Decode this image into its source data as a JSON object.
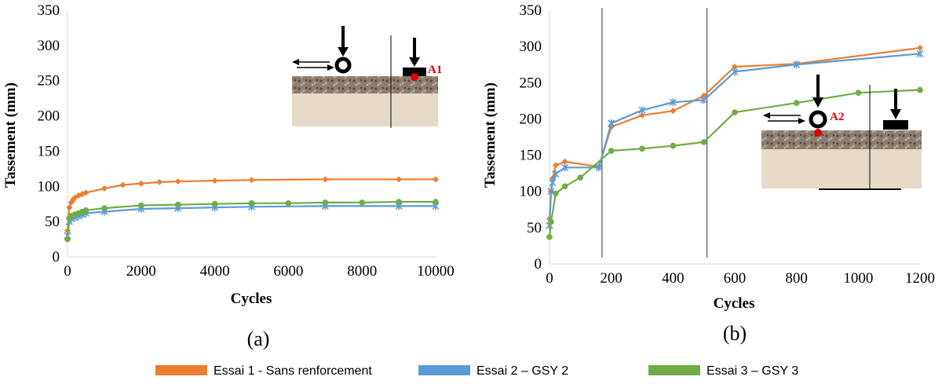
{
  "colors": {
    "essai1": "#ed7d31",
    "essai2": "#5b9bd5",
    "essai3": "#70ad47",
    "axis": "#d9d9d9",
    "sensor": "#e00000"
  },
  "legend": [
    {
      "label": "Essai 1 - Sans renforcement",
      "color": "#ed7d31"
    },
    {
      "label": "Essai 2 – GSY 2",
      "color": "#5b9bd5"
    },
    {
      "label": "Essai 3 – GSY 3",
      "color": "#70ad47"
    }
  ],
  "chart_data": [
    {
      "type": "line",
      "panel_label": "(a)",
      "xlabel": "Cycles",
      "ylabel": "Tassement (mm)",
      "xlim": [
        0,
        10000
      ],
      "ylim": [
        0,
        350
      ],
      "xticks": [
        0,
        2000,
        4000,
        6000,
        8000,
        10000
      ],
      "yticks": [
        0,
        50,
        100,
        150,
        200,
        250,
        300,
        350
      ],
      "grid": false,
      "inset": {
        "sensor_label": "A1"
      },
      "series": [
        {
          "name": "Essai 1 - Sans renforcement",
          "marker": "diamond",
          "x": [
            0,
            50,
            100,
            150,
            200,
            300,
            400,
            500,
            1000,
            1500,
            2000,
            2500,
            3000,
            4000,
            5000,
            7000,
            9000,
            10000
          ],
          "y": [
            37,
            70,
            77,
            81,
            84,
            87,
            89,
            91,
            97,
            102,
            104,
            106,
            107,
            108,
            109,
            110,
            110,
            110
          ]
        },
        {
          "name": "Essai 2 – GSY 2",
          "marker": "star",
          "x": [
            0,
            50,
            100,
            200,
            300,
            400,
            500,
            1000,
            2000,
            3000,
            4000,
            5000,
            7000,
            9000,
            10000
          ],
          "y": [
            30,
            50,
            54,
            56,
            58,
            60,
            62,
            64,
            68,
            69,
            70,
            71,
            72,
            72,
            72
          ]
        },
        {
          "name": "Essai 3 – GSY 3",
          "marker": "circle",
          "x": [
            0,
            50,
            100,
            200,
            300,
            400,
            500,
            1000,
            2000,
            3000,
            4000,
            5000,
            6000,
            7000,
            8000,
            9000,
            10000
          ],
          "y": [
            25,
            55,
            58,
            60,
            62,
            64,
            66,
            69,
            73,
            74,
            75,
            76,
            76,
            77,
            77,
            78,
            78
          ]
        }
      ]
    },
    {
      "type": "line",
      "panel_label": "(b)",
      "xlabel": "Cycles",
      "ylabel": "Tassement (mm)",
      "xlim": [
        0,
        1200
      ],
      "ylim": [
        0,
        350
      ],
      "xticks": [
        0,
        200,
        400,
        600,
        800,
        1000,
        1200
      ],
      "yticks": [
        0,
        50,
        100,
        150,
        200,
        250,
        300,
        350
      ],
      "grid": false,
      "vlines": [
        170,
        510
      ],
      "inset": {
        "sensor_label": "A2"
      },
      "series": [
        {
          "name": "Essai 1 - Sans renforcement",
          "marker": "diamond",
          "x": [
            0,
            5,
            10,
            20,
            50,
            160,
            200,
            300,
            400,
            500,
            600,
            800,
            1200
          ],
          "y": [
            62,
            100,
            118,
            136,
            141,
            134,
            189,
            205,
            211,
            232,
            272,
            276,
            298
          ]
        },
        {
          "name": "Essai 2 – GSY 2",
          "marker": "star",
          "x": [
            0,
            5,
            10,
            20,
            50,
            160,
            200,
            300,
            400,
            500,
            600,
            800,
            1200
          ],
          "y": [
            53,
            100,
            112,
            124,
            133,
            133,
            194,
            212,
            223,
            226,
            265,
            275,
            290
          ]
        },
        {
          "name": "Essai 3 – GSY 3",
          "marker": "circle",
          "x": [
            0,
            5,
            20,
            50,
            100,
            200,
            300,
            400,
            500,
            600,
            800,
            1000,
            1200
          ],
          "y": [
            37,
            58,
            97,
            107,
            119,
            156,
            159,
            163,
            168,
            209,
            222,
            236,
            240
          ]
        }
      ]
    }
  ]
}
